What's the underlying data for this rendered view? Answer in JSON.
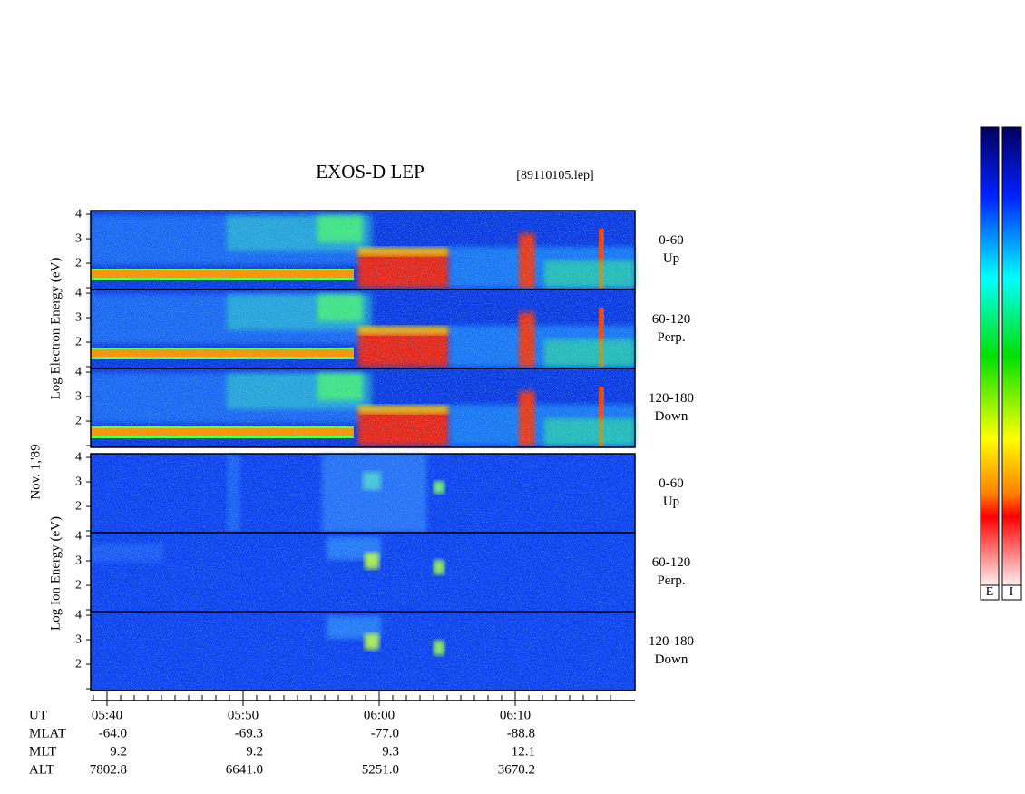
{
  "title": "EXOS-D LEP",
  "file": "[89110105.lep]",
  "date_label": "Nov. 1,'89",
  "electron": {
    "ylabel": "Log  Electron  Energy  (eV)",
    "yticks": [
      2,
      3,
      4
    ],
    "panels": [
      {
        "angle": "0-60",
        "direction": "Up"
      },
      {
        "angle": "60-120",
        "direction": "Perp."
      },
      {
        "angle": "120-180",
        "direction": "Down"
      }
    ]
  },
  "ion": {
    "ylabel": "Log  Ion  Energy  (eV)",
    "yticks": [
      2,
      3,
      4
    ],
    "panels": [
      {
        "angle": "0-60",
        "direction": "Up"
      },
      {
        "angle": "60-120",
        "direction": "Perp."
      },
      {
        "angle": "120-180",
        "direction": "Down"
      }
    ]
  },
  "time_axis": {
    "ticks": [
      "05:40",
      "05:50",
      "06:00",
      "06:10"
    ]
  },
  "orbit": {
    "rows": [
      {
        "name": "UT"
      },
      {
        "name": "MLAT",
        "values": [
          "-64.0",
          "-69.3",
          "-77.0",
          "-88.8"
        ]
      },
      {
        "name": "MLT",
        "values": [
          "9.2",
          "9.2",
          "9.3",
          "12.1"
        ]
      },
      {
        "name": "ALT",
        "values": [
          "7802.8",
          "6641.0",
          "5251.0",
          "3670.2"
        ]
      }
    ]
  },
  "colorbar": {
    "labels": [
      "E",
      "I"
    ]
  }
}
